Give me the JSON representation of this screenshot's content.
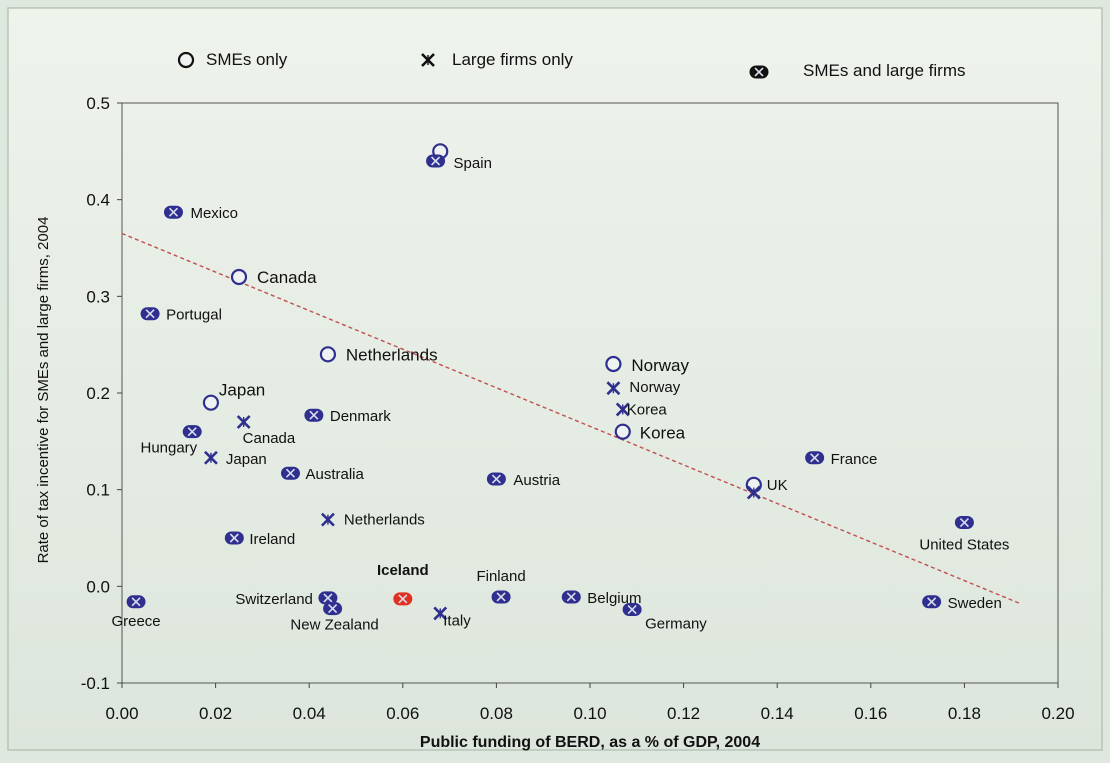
{
  "chart_data": {
    "type": "scatter",
    "title": "",
    "xlabel": "Public funding of BERD, as a % of GDP, 2004",
    "ylabel": "Rate of tax incentive for SMEs and large firms, 2004",
    "xlim": [
      0.0,
      0.2
    ],
    "ylim": [
      -0.1,
      0.5
    ],
    "xticks": [
      "0.00",
      "0.02",
      "0.04",
      "0.06",
      "0.08",
      "0.10",
      "0.12",
      "0.14",
      "0.16",
      "0.18",
      "0.20"
    ],
    "yticks": [
      "-0.1",
      "0.0",
      "0.1",
      "0.2",
      "0.3",
      "0.4",
      "0.5"
    ],
    "grid": false,
    "legend_position": "top",
    "legend": [
      {
        "marker": "circle",
        "label": "SMEs only"
      },
      {
        "marker": "x",
        "label": "Large firms only"
      },
      {
        "marker": "boxed-x",
        "label": "SMEs and large firms"
      }
    ],
    "colors": {
      "marker": "#2f2f8f",
      "highlight": "#e03020",
      "trend": "#c05050",
      "text": "#111111"
    },
    "series": [
      {
        "name": "SMEs only",
        "marker": "circle",
        "points": [
          {
            "label": "Spain",
            "x": 0.068,
            "y": 0.45,
            "show_label": false
          },
          {
            "label": "Canada",
            "x": 0.025,
            "y": 0.32
          },
          {
            "label": "Netherlands",
            "x": 0.044,
            "y": 0.24
          },
          {
            "label": "Norway",
            "x": 0.105,
            "y": 0.23
          },
          {
            "label": "Japan",
            "x": 0.019,
            "y": 0.19
          },
          {
            "label": "Korea",
            "x": 0.107,
            "y": 0.16
          },
          {
            "label": "UK",
            "x": 0.135,
            "y": 0.105
          }
        ]
      },
      {
        "name": "Large firms only",
        "marker": "x",
        "points": [
          {
            "label": "Norway",
            "x": 0.105,
            "y": 0.205
          },
          {
            "label": "Korea",
            "x": 0.107,
            "y": 0.183
          },
          {
            "label": "Canada",
            "x": 0.026,
            "y": 0.17
          },
          {
            "label": "Japan",
            "x": 0.019,
            "y": 0.133
          },
          {
            "label": "Netherlands",
            "x": 0.044,
            "y": 0.069
          },
          {
            "label": "Italy",
            "x": 0.068,
            "y": -0.028
          },
          {
            "label": "UK",
            "x": 0.135,
            "y": 0.097,
            "show_label": false
          }
        ]
      },
      {
        "name": "SMEs and large firms",
        "marker": "boxed-x",
        "points": [
          {
            "label": "Spain",
            "x": 0.067,
            "y": 0.44
          },
          {
            "label": "Mexico",
            "x": 0.011,
            "y": 0.387
          },
          {
            "label": "Portugal",
            "x": 0.006,
            "y": 0.282
          },
          {
            "label": "Denmark",
            "x": 0.041,
            "y": 0.177
          },
          {
            "label": "Hungary",
            "x": 0.015,
            "y": 0.16
          },
          {
            "label": "Australia",
            "x": 0.036,
            "y": 0.117
          },
          {
            "label": "Austria",
            "x": 0.08,
            "y": 0.111
          },
          {
            "label": "France",
            "x": 0.148,
            "y": 0.133
          },
          {
            "label": "United States",
            "x": 0.18,
            "y": 0.066
          },
          {
            "label": "Ireland",
            "x": 0.024,
            "y": 0.05
          },
          {
            "label": "Finland",
            "x": 0.081,
            "y": -0.011
          },
          {
            "label": "Belgium",
            "x": 0.096,
            "y": -0.011
          },
          {
            "label": "Switzerland",
            "x": 0.044,
            "y": -0.012
          },
          {
            "label": "Germany",
            "x": 0.109,
            "y": -0.024
          },
          {
            "label": "New Zealand",
            "x": 0.045,
            "y": -0.023
          },
          {
            "label": "Greece",
            "x": 0.003,
            "y": -0.016
          },
          {
            "label": "Sweden",
            "x": 0.173,
            "y": -0.016
          },
          {
            "label": "Iceland",
            "x": 0.06,
            "y": -0.013,
            "highlight": true
          }
        ]
      }
    ],
    "trendline": {
      "style": "dashed",
      "x": [
        0.0,
        0.192
      ],
      "y": [
        0.365,
        -0.018
      ]
    }
  }
}
